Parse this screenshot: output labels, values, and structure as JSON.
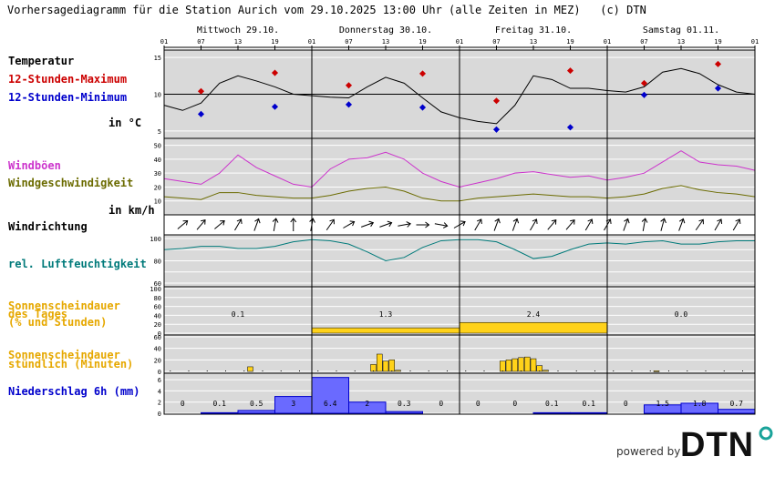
{
  "header": {
    "title": "Vorhersagediagramm für die Station Aurich vom 29.10.2025 13:00 Uhr (alle Zeiten in MEZ)   (c) DTN"
  },
  "days": [
    "Mittwoch 29.10.",
    "Donnerstag 30.10.",
    "Freitag 31.10.",
    "Samstag 01.11."
  ],
  "hour_ticks": [
    "01",
    "07",
    "13",
    "19",
    "01",
    "07",
    "13",
    "19",
    "01",
    "07",
    "13",
    "19",
    "01",
    "07",
    "13",
    "19",
    "01"
  ],
  "labels": {
    "temperatur": "Temperatur",
    "max": "12-Stunden-Maximum",
    "min": "12-Stunden-Minimum",
    "temp_unit": "in °C",
    "boeen": "Windböen",
    "wind": "Windgeschwindigkeit",
    "wind_unit": "in km/h",
    "richtung": "Windrichtung",
    "feuchte": "rel. Luftfeuchtigkeit",
    "sonne_tag_1": "Sonnenscheindauer",
    "sonne_tag_2": "des Tages",
    "sonne_tag_3": "(% und Stunden)",
    "sonne_std_1": "Sonnenscheindauer",
    "sonne_std_2": "stündlich (Minuten)",
    "niederschlag": "Niederschlag 6h (mm)"
  },
  "footer": {
    "powered_by": "powered by",
    "logo_text": "DTN"
  },
  "colors": {
    "max": "#cc0000",
    "min": "#0000cc",
    "boeen": "#cc33cc",
    "wind": "#6b6b00",
    "feuchte": "#007a7a",
    "sonne": "#e6a800",
    "sonne_fill": "#ffd21a",
    "nieder": "#0000cc",
    "nieder_fill": "#6a6aff",
    "panel_bg": "#d9d9d9"
  },
  "chart_data": [
    {
      "type": "line",
      "name": "temperature",
      "ylim": [
        4,
        16
      ],
      "yticks": [
        "15",
        "10",
        "5"
      ],
      "x_hours": [
        0,
        3,
        6,
        9,
        12,
        15,
        18,
        21,
        24,
        27,
        30,
        33,
        36,
        39,
        42,
        45,
        48,
        51,
        54,
        57,
        60,
        63,
        66,
        69,
        72,
        75,
        78,
        81,
        84,
        87,
        90,
        93,
        96
      ],
      "y": [
        8.5,
        7.8,
        8.8,
        11.5,
        12.5,
        11.8,
        11,
        10,
        9.8,
        9.6,
        9.5,
        11,
        12.3,
        11.5,
        9.5,
        7.6,
        6.8,
        6.3,
        6.0,
        8.5,
        12.5,
        12,
        10.8,
        10.8,
        10.5,
        10.3,
        11,
        13,
        13.5,
        12.8,
        11.3,
        10.3,
        10.0
      ],
      "max_points": [
        {
          "x_hour": 6,
          "y": 10.4
        },
        {
          "x_hour": 18,
          "y": 12.9
        },
        {
          "x_hour": 30,
          "y": 11.2
        },
        {
          "x_hour": 42,
          "y": 12.8
        },
        {
          "x_hour": 54,
          "y": 9.1
        },
        {
          "x_hour": 66,
          "y": 13.2
        },
        {
          "x_hour": 78,
          "y": 11.5
        },
        {
          "x_hour": 90,
          "y": 14.1
        }
      ],
      "min_points": [
        {
          "x_hour": 6,
          "y": 7.3
        },
        {
          "x_hour": 18,
          "y": 8.3
        },
        {
          "x_hour": 30,
          "y": 8.6
        },
        {
          "x_hour": 42,
          "y": 8.2
        },
        {
          "x_hour": 54,
          "y": 5.2
        },
        {
          "x_hour": 66,
          "y": 5.5
        },
        {
          "x_hour": 78,
          "y": 9.9
        },
        {
          "x_hour": 90,
          "y": 10.8
        }
      ]
    },
    {
      "type": "line",
      "name": "wind",
      "ylim": [
        0,
        55
      ],
      "yticks": [
        "50",
        "40",
        "30",
        "20",
        "10"
      ],
      "x_hours": [
        0,
        3,
        6,
        9,
        12,
        15,
        18,
        21,
        24,
        27,
        30,
        33,
        36,
        39,
        42,
        45,
        48,
        51,
        54,
        57,
        60,
        63,
        66,
        69,
        72,
        75,
        78,
        81,
        84,
        87,
        90,
        93,
        96
      ],
      "boeen": [
        26,
        24,
        22,
        30,
        43,
        34,
        28,
        22,
        20,
        33,
        40,
        41,
        45,
        40,
        30,
        24,
        20,
        23,
        26,
        30,
        31,
        29,
        27,
        28,
        25,
        27,
        30,
        38,
        46,
        38,
        36,
        35,
        32
      ],
      "geschwindigkeit": [
        13,
        12,
        11,
        16,
        16,
        14,
        13,
        12,
        12,
        14,
        17,
        19,
        20,
        17,
        12,
        10,
        10,
        12,
        13,
        14,
        15,
        14,
        13,
        13,
        12,
        13,
        15,
        19,
        21,
        18,
        16,
        15,
        13
      ]
    },
    {
      "type": "line",
      "name": "windrichtung",
      "x_hours": [
        0,
        3,
        6,
        9,
        12,
        15,
        18,
        21,
        24,
        27,
        30,
        33,
        36,
        39,
        42,
        45,
        48,
        51,
        54,
        57,
        60,
        63,
        66,
        69,
        72,
        75,
        78,
        81,
        84,
        87,
        90,
        93,
        96
      ],
      "direction_deg": [
        240,
        230,
        220,
        230,
        210,
        200,
        190,
        180,
        190,
        215,
        240,
        250,
        250,
        260,
        270,
        280,
        240,
        210,
        200,
        200,
        210,
        220,
        220,
        210,
        210,
        200,
        190,
        195,
        200,
        215,
        210,
        210,
        210
      ]
    },
    {
      "type": "line",
      "name": "luftfeuchtigkeit",
      "ylim": [
        60,
        100
      ],
      "yticks": [
        "100",
        "80",
        "60"
      ],
      "x_hours": [
        0,
        3,
        6,
        9,
        12,
        15,
        18,
        21,
        24,
        27,
        30,
        33,
        36,
        39,
        42,
        45,
        48,
        51,
        54,
        57,
        60,
        63,
        66,
        69,
        72,
        75,
        78,
        81,
        84,
        87,
        90,
        93,
        96
      ],
      "y": [
        90,
        91,
        93,
        93,
        91,
        91,
        93,
        97,
        99,
        98,
        95,
        88,
        80,
        83,
        92,
        98,
        99,
        99,
        97,
        90,
        82,
        84,
        90,
        95,
        96,
        95,
        97,
        98,
        95,
        95,
        97,
        98,
        98
      ]
    },
    {
      "type": "bar",
      "name": "sonnenschein_tag",
      "ylim": [
        0,
        100
      ],
      "yticks": [
        "100",
        "80",
        "60",
        "40",
        "20",
        "0"
      ],
      "values_percent": [
        0,
        12,
        24,
        0
      ],
      "value_labels": [
        "0.1",
        "1.3",
        "2.4",
        "0.0"
      ]
    },
    {
      "type": "bar",
      "name": "sonnenschein_stuendlich",
      "ylim": [
        0,
        60
      ],
      "yticks": [
        "60",
        "40",
        "20",
        "0"
      ],
      "x_hours": [
        14,
        34,
        35,
        36,
        37,
        38,
        55,
        56,
        57,
        58,
        59,
        60,
        61,
        62,
        80
      ],
      "minutes": [
        8,
        12,
        30,
        18,
        20,
        2,
        18,
        20,
        22,
        24,
        25,
        22,
        10,
        2,
        1
      ]
    },
    {
      "type": "bar",
      "name": "niederschlag_6h",
      "ylim": [
        0,
        7
      ],
      "yticks": [
        "6",
        "4",
        "2",
        "0"
      ],
      "values": [
        0,
        0.1,
        0.5,
        3,
        6.4,
        2,
        0.3,
        0,
        0,
        0,
        0.1,
        0.1,
        0,
        1.5,
        1.8,
        0.7
      ],
      "value_labels": [
        "0",
        "0.1",
        "0.5",
        "3",
        "6.4",
        "2",
        "0.3",
        "0",
        "0",
        "0",
        "0.1",
        "0.1",
        "0",
        "1.5",
        "1.8",
        "0.7"
      ]
    }
  ]
}
